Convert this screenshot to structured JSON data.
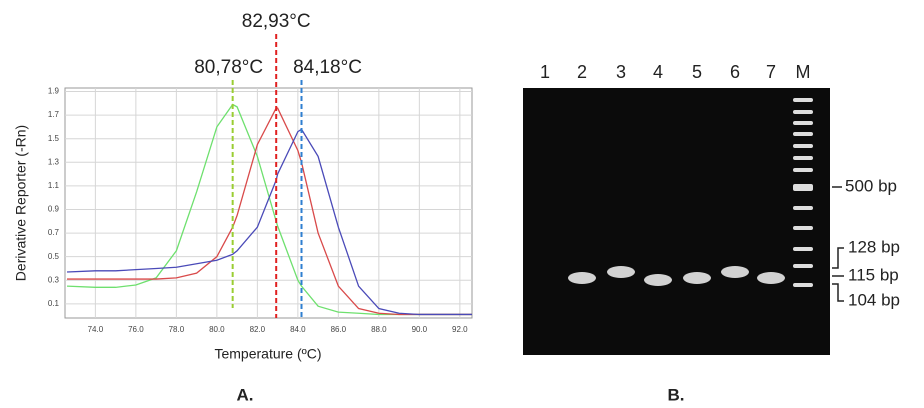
{
  "chart_data": {
    "type": "line",
    "xlabel": "Temperature (ºC)",
    "ylabel": "Derivative Reporter (-Rn)",
    "x": [
      72.6,
      74,
      75,
      76,
      77,
      78,
      79,
      80,
      80.78,
      81,
      82,
      82.93,
      83,
      84,
      84.18,
      85,
      86,
      87,
      88,
      89,
      90,
      91,
      92,
      92.6
    ],
    "series": [
      {
        "color": "#6ee06e",
        "values": [
          0.25,
          0.24,
          0.24,
          0.26,
          0.32,
          0.55,
          1.05,
          1.6,
          1.79,
          1.77,
          1.35,
          0.8,
          0.76,
          0.3,
          0.25,
          0.08,
          0.03,
          0.02,
          0.01,
          0.01,
          0.01,
          0.01,
          0.01,
          0.01
        ]
      },
      {
        "color": "#d94a4a",
        "values": [
          0.31,
          0.31,
          0.31,
          0.31,
          0.31,
          0.32,
          0.36,
          0.5,
          0.75,
          0.85,
          1.45,
          1.76,
          1.76,
          1.4,
          1.3,
          0.7,
          0.25,
          0.06,
          0.02,
          0.01,
          0.01,
          0.01,
          0.01,
          0.01
        ]
      },
      {
        "color": "#4a4ab8",
        "values": [
          0.37,
          0.38,
          0.38,
          0.39,
          0.4,
          0.41,
          0.44,
          0.47,
          0.52,
          0.55,
          0.75,
          1.15,
          1.2,
          1.56,
          1.58,
          1.35,
          0.75,
          0.25,
          0.06,
          0.02,
          0.01,
          0.01,
          0.01,
          0.01
        ]
      }
    ],
    "xlim": [
      72.5,
      92.6
    ],
    "ylim": [
      -0.02,
      1.93
    ],
    "xticks": [
      {
        "value": 74,
        "label": "74.0"
      },
      {
        "value": 76,
        "label": "76.0"
      },
      {
        "value": 78,
        "label": "78.0"
      },
      {
        "value": 80,
        "label": "80.0"
      },
      {
        "value": 82,
        "label": "82.0"
      },
      {
        "value": 84,
        "label": "84.0"
      },
      {
        "value": 86,
        "label": "86.0"
      },
      {
        "value": 88,
        "label": "88.0"
      },
      {
        "value": 90,
        "label": "90.0"
      },
      {
        "value": 92,
        "label": "92.0"
      }
    ],
    "yticks": [
      0.1,
      0.3,
      0.5,
      0.7,
      0.9,
      1.1,
      1.3,
      1.5,
      1.7,
      1.9
    ],
    "grid": true,
    "annotations": [
      {
        "text": "80,78°C",
        "x": 80.78,
        "color": "#9acd32"
      },
      {
        "text": "82,93°C",
        "x": 82.93,
        "color": "#e02020"
      },
      {
        "text": "84,18°C",
        "x": 84.18,
        "color": "#2f7fd0"
      }
    ]
  },
  "gel": {
    "lanes": [
      "1",
      "2",
      "3",
      "4",
      "5",
      "6",
      "7",
      "M"
    ],
    "markers": [
      "500 bp",
      "128 bp",
      "115 bp",
      "104 bp"
    ]
  },
  "panels": [
    "A.",
    "B."
  ]
}
